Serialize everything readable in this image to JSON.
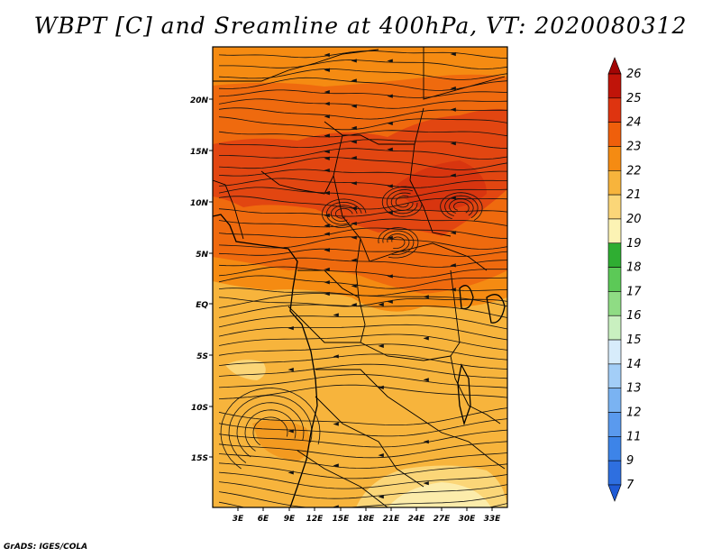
{
  "title": "WBPT [C] and Sreamline at 400hPa, VT: 2020080312",
  "credit": "GrADS: IGES/COLA",
  "map": {
    "x_ticks": [
      "3E",
      "6E",
      "9E",
      "12E",
      "15E",
      "18E",
      "21E",
      "24E",
      "27E",
      "30E",
      "33E"
    ],
    "y_ticks": [
      "20N",
      "15N",
      "10N",
      "5N",
      "EQ",
      "5S",
      "10S",
      "15S"
    ]
  },
  "colorbar": {
    "labels": [
      "7",
      "9",
      "11",
      "12",
      "13",
      "14",
      "15",
      "16",
      "17",
      "18",
      "19",
      "20",
      "21",
      "22",
      "23",
      "24",
      "25",
      "26"
    ],
    "colors": [
      "#1f5bd6",
      "#2e6fe0",
      "#3d84e8",
      "#5a9aee",
      "#7ab3f2",
      "#a3cef7",
      "#d7ecfb",
      "#c9f0c0",
      "#8fdc84",
      "#5cc957",
      "#2fae32",
      "#fcf3b4",
      "#fbd678",
      "#f7b43c",
      "#f58b12",
      "#ef5f0b",
      "#de3410",
      "#c01409",
      "#a20504"
    ]
  },
  "colors": {
    "warm_fill": "#f7b43c",
    "warmer_fill": "#f58b12",
    "hot_fill": "#ef5f0b",
    "cool_fill": "#fbd678"
  }
}
